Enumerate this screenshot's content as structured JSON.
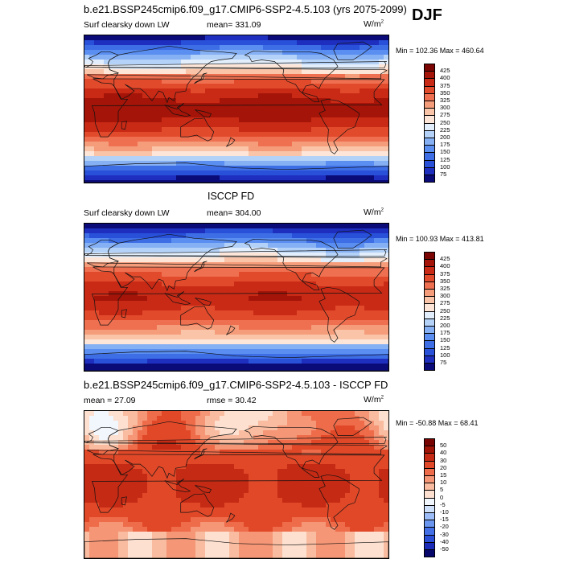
{
  "season": "DJF",
  "panels": [
    {
      "title": "b.e21.BSSP245cmip6.f09_g17.CMIP6-SSP2-4.5.103 (yrs 2075-2099)",
      "left": "Surf clearsky down LW",
      "center": "mean= 331.09",
      "units_base": "W/m",
      "units_exp": "2",
      "minmax": "Min = 102.36 Max = 460.64",
      "colorbar_labels": [
        "425",
        "400",
        "375",
        "350",
        "325",
        "300",
        "275",
        "250",
        "225",
        "200",
        "175",
        "150",
        "125",
        "100",
        "75"
      ],
      "kind": "abs",
      "warm_shift": 1.0
    },
    {
      "title": "ISCCP FD",
      "left": "Surf clearsky down LW",
      "center": "mean= 304.00",
      "units_base": "W/m",
      "units_exp": "2",
      "minmax": "Min = 100.93 Max = 413.81",
      "colorbar_labels": [
        "425",
        "400",
        "375",
        "350",
        "325",
        "300",
        "275",
        "250",
        "225",
        "200",
        "175",
        "150",
        "125",
        "100",
        "75"
      ],
      "kind": "abs",
      "warm_shift": 0.0
    },
    {
      "title": "b.e21.BSSP245cmip6.f09_g17.CMIP6-SSP2-4.5.103 - ISCCP FD",
      "left": "mean =  27.09",
      "center": "rmse =  30.42",
      "units_base": "W/m",
      "units_exp": "2",
      "minmax": "Min = -50.88 Max =  68.41",
      "colorbar_labels": [
        "50",
        "40",
        "30",
        "20",
        "15",
        "10",
        "5",
        "0",
        "-5",
        "-10",
        "-15",
        "-20",
        "-30",
        "-40",
        "-50"
      ],
      "kind": "diff",
      "warm_shift": 0.0
    }
  ],
  "colors": {
    "abs_scale": [
      "#0a0a78",
      "#1e2fbf",
      "#2850d8",
      "#3e6ee6",
      "#5a8ef0",
      "#86b0f4",
      "#b4d2f8",
      "#e2eefb",
      "#fde6d8",
      "#f9c4a8",
      "#f59c7a",
      "#ef7050",
      "#e24a2c",
      "#c92a16",
      "#a41408",
      "#7a0502"
    ],
    "diff_scale": [
      "#06066b",
      "#1a2bb8",
      "#2a4ed6",
      "#4370e6",
      "#6a96f0",
      "#9bbcf6",
      "#cfe0fb",
      "#f2f6fd",
      "#fde0d0",
      "#f9bca0",
      "#f59676",
      "#ee6c4a",
      "#e14828",
      "#c52a14",
      "#9f1406",
      "#780402"
    ],
    "coast": "#111111"
  }
}
